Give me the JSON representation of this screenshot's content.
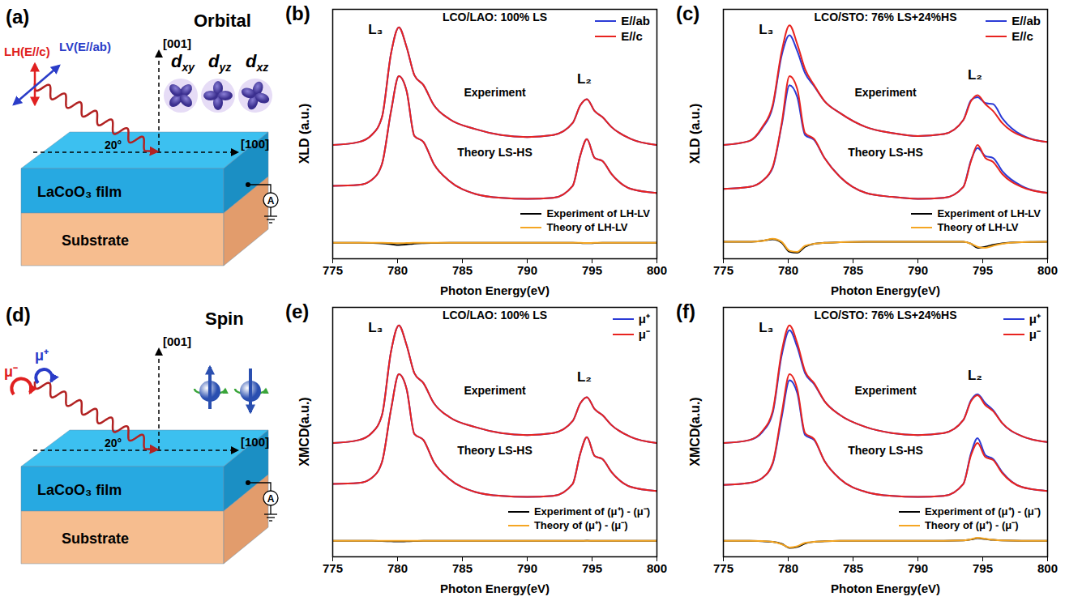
{
  "chart_data": [
    {
      "type": "line",
      "panel": "(b)",
      "title": "LCO/LAO: 100% LS",
      "xlabel": "Photon Energy(eV)",
      "ylabel": "XLD (a.u.)",
      "xlim": [
        775,
        800
      ],
      "xticks": [
        775,
        780,
        785,
        790,
        795,
        800
      ],
      "ylim": [
        -2,
        10.5
      ],
      "tick_labels": "x",
      "legend": "top-right",
      "x": [
        775,
        777,
        778,
        778.8,
        779.5,
        780.1,
        780.7,
        781.3,
        782,
        782.8,
        784,
        786,
        788,
        790,
        792,
        793.5,
        794.1,
        794.6,
        795.2,
        795.8,
        796.5,
        798,
        800
      ],
      "series": [
        {
          "name": "E//ab",
          "color": "#2b3bd6",
          "values": [
            3.7,
            3.85,
            4.2,
            5.1,
            8.3,
            9.6,
            8.6,
            7.2,
            6.7,
            5.7,
            5.0,
            4.5,
            4.2,
            4.1,
            4.2,
            4.8,
            5.7,
            6.0,
            5.4,
            5.1,
            4.6,
            4.0,
            3.7
          ]
        },
        {
          "name": "E//c",
          "color": "#e8231f",
          "values": [
            3.7,
            3.85,
            4.2,
            5.1,
            8.3,
            9.6,
            8.6,
            7.2,
            6.7,
            5.7,
            5.0,
            4.5,
            4.2,
            4.1,
            4.2,
            4.8,
            5.7,
            6.0,
            5.4,
            5.1,
            4.6,
            4.0,
            3.7
          ]
        },
        {
          "name": "E//ab",
          "color": "#2b3bd6",
          "values": [
            1.65,
            1.7,
            1.95,
            2.75,
            5.4,
            7.15,
            6.4,
            4.15,
            3.85,
            2.75,
            1.9,
            1.25,
            1.05,
            1.0,
            1.05,
            1.65,
            3.2,
            4.0,
            3.05,
            2.9,
            2.25,
            1.5,
            1.3
          ]
        },
        {
          "name": "E//c",
          "color": "#e8231f",
          "values": [
            1.65,
            1.7,
            1.95,
            2.75,
            5.4,
            7.15,
            6.4,
            4.15,
            3.85,
            2.75,
            1.9,
            1.25,
            1.05,
            1.0,
            1.05,
            1.65,
            3.2,
            4.0,
            3.05,
            2.9,
            2.25,
            1.5,
            1.3
          ]
        },
        {
          "name": "Experiment of LH-LV",
          "color": "#000000",
          "values": [
            -1.2,
            -1.2,
            -1.21,
            -1.23,
            -1.27,
            -1.31,
            -1.28,
            -1.24,
            -1.22,
            -1.21,
            -1.2,
            -1.2,
            -1.2,
            -1.2,
            -1.2,
            -1.2,
            -1.21,
            -1.22,
            -1.21,
            -1.2,
            -1.2,
            -1.2,
            -1.2
          ]
        },
        {
          "name": "Theory of LH-LV",
          "color": "#f5a623",
          "values": [
            -1.2,
            -1.2,
            -1.2,
            -1.2,
            -1.21,
            -1.22,
            -1.21,
            -1.2,
            -1.2,
            -1.2,
            -1.2,
            -1.2,
            -1.2,
            -1.2,
            -1.2,
            -1.2,
            -1.2,
            -1.21,
            -1.2,
            -1.2,
            -1.2,
            -1.2,
            -1.2
          ]
        }
      ],
      "annotations": [
        {
          "text": "L₃",
          "x": 778.3,
          "y": 9.5
        },
        {
          "text": "L₂",
          "x": 794.4,
          "y": 7.0
        },
        {
          "text": "Experiment",
          "x": 787.5,
          "y": 6.3
        },
        {
          "text": "Theory LS-HS",
          "x": 787.5,
          "y": 3.3
        }
      ]
    },
    {
      "type": "line",
      "panel": "(c)",
      "title": "LCO/STO: 76% LS+24%HS",
      "xlabel": "Photon Energy(eV)",
      "ylabel": "XLD (a.u.)",
      "xlim": [
        775,
        800
      ],
      "xticks": [
        775,
        780,
        785,
        790,
        795,
        800
      ],
      "ylim": [
        -2,
        10.5
      ],
      "tick_labels": "x",
      "legend": "top-right",
      "x": [
        775,
        777,
        778,
        778.8,
        779.5,
        780.1,
        780.7,
        781.3,
        782,
        782.8,
        784,
        786,
        788,
        790,
        792,
        793.5,
        794.1,
        794.6,
        795.2,
        795.8,
        796.5,
        798,
        800
      ],
      "series": [
        {
          "name": "E//ab",
          "color": "#2b3bd6",
          "values": [
            3.7,
            3.9,
            4.55,
            5.6,
            8.2,
            9.2,
            8.4,
            7.3,
            6.65,
            5.9,
            5.3,
            4.6,
            4.3,
            4.15,
            4.25,
            4.95,
            5.95,
            6.1,
            5.8,
            5.75,
            5.05,
            4.2,
            3.85
          ]
        },
        {
          "name": "E//c",
          "color": "#e8231f",
          "values": [
            3.7,
            3.9,
            4.6,
            5.7,
            8.4,
            9.7,
            8.75,
            7.5,
            6.7,
            5.9,
            5.3,
            4.6,
            4.3,
            4.15,
            4.25,
            4.95,
            5.9,
            6.2,
            5.75,
            5.4,
            4.8,
            4.15,
            3.85
          ]
        },
        {
          "name": "E//ab",
          "color": "#2b3bd6",
          "values": [
            1.5,
            1.6,
            1.9,
            2.55,
            4.7,
            6.7,
            6.1,
            4.2,
            3.95,
            3.05,
            2.1,
            1.3,
            1.1,
            1.0,
            1.05,
            1.6,
            2.95,
            3.55,
            3.15,
            3.05,
            2.4,
            1.65,
            1.3
          ]
        },
        {
          "name": "E//c",
          "color": "#e8231f",
          "values": [
            1.5,
            1.6,
            1.9,
            2.6,
            4.8,
            7.15,
            6.5,
            4.3,
            4.0,
            3.05,
            2.1,
            1.3,
            1.1,
            1.0,
            1.05,
            1.6,
            2.9,
            3.7,
            3.05,
            2.85,
            2.25,
            1.6,
            1.3
          ]
        },
        {
          "name": "Experiment of LH-LV",
          "color": "#000000",
          "values": [
            -1.15,
            -1.15,
            -1.1,
            -1.03,
            -1.2,
            -1.65,
            -1.7,
            -1.4,
            -1.25,
            -1.2,
            -1.17,
            -1.15,
            -1.15,
            -1.15,
            -1.15,
            -1.15,
            -1.25,
            -1.45,
            -1.4,
            -1.3,
            -1.23,
            -1.17,
            -1.15
          ]
        },
        {
          "name": "Theory of LH-LV",
          "color": "#f5a623",
          "values": [
            -1.15,
            -1.15,
            -1.11,
            -1.0,
            -1.15,
            -1.6,
            -1.65,
            -1.35,
            -1.25,
            -1.2,
            -1.17,
            -1.15,
            -1.15,
            -1.15,
            -1.15,
            -1.15,
            -1.25,
            -1.4,
            -1.45,
            -1.35,
            -1.25,
            -1.17,
            -1.15
          ]
        }
      ],
      "annotations": [
        {
          "text": "L₃",
          "x": 778.3,
          "y": 9.5
        },
        {
          "text": "L₂",
          "x": 794.4,
          "y": 7.2
        },
        {
          "text": "Experiment",
          "x": 787.5,
          "y": 6.3
        },
        {
          "text": "Theory LS-HS",
          "x": 787.5,
          "y": 3.3
        }
      ]
    },
    {
      "type": "line",
      "panel": "(e)",
      "title": "LCO/LAO: 100% LS",
      "xlabel": "Photon Energy(eV)",
      "ylabel": "XMCD(a.u.)",
      "xlim": [
        775,
        800
      ],
      "xticks": [
        775,
        780,
        785,
        790,
        795,
        800
      ],
      "ylim": [
        -2,
        10.5
      ],
      "tick_labels": "x",
      "legend": "top-right",
      "x": [
        775,
        777,
        778,
        778.8,
        779.5,
        780.1,
        780.7,
        781.3,
        782,
        782.8,
        784,
        786,
        788,
        790,
        792,
        793.5,
        794.1,
        794.6,
        795.2,
        795.8,
        796.5,
        798,
        800
      ],
      "series": [
        {
          "name": "μ⁺",
          "color": "#2b3bd6",
          "values": [
            3.7,
            3.85,
            4.2,
            5.1,
            8.3,
            9.6,
            8.6,
            7.2,
            6.7,
            5.7,
            5.0,
            4.5,
            4.2,
            4.1,
            4.2,
            4.8,
            5.7,
            6.0,
            5.4,
            5.1,
            4.6,
            4.0,
            3.7
          ]
        },
        {
          "name": "μ⁻",
          "color": "#e8231f",
          "values": [
            3.7,
            3.85,
            4.2,
            5.1,
            8.3,
            9.6,
            8.6,
            7.2,
            6.7,
            5.7,
            5.0,
            4.5,
            4.2,
            4.1,
            4.2,
            4.8,
            5.7,
            6.0,
            5.4,
            5.1,
            4.6,
            4.0,
            3.7
          ]
        },
        {
          "name": "μ⁺",
          "color": "#2b3bd6",
          "values": [
            1.65,
            1.7,
            1.95,
            2.75,
            5.4,
            7.15,
            6.4,
            4.15,
            3.85,
            2.75,
            1.9,
            1.25,
            1.05,
            1.0,
            1.05,
            1.65,
            3.2,
            4.0,
            3.05,
            2.9,
            2.25,
            1.5,
            1.3
          ]
        },
        {
          "name": "μ⁻",
          "color": "#e8231f",
          "values": [
            1.65,
            1.7,
            1.95,
            2.75,
            5.4,
            7.15,
            6.4,
            4.15,
            3.85,
            2.75,
            1.9,
            1.25,
            1.05,
            1.0,
            1.05,
            1.65,
            3.2,
            4.0,
            3.05,
            2.9,
            2.25,
            1.5,
            1.3
          ]
        },
        {
          "name": "Experiment of (μ⁺) - (μ⁻)",
          "color": "#000000",
          "values": [
            -1.2,
            -1.2,
            -1.2,
            -1.21,
            -1.22,
            -1.23,
            -1.22,
            -1.21,
            -1.2,
            -1.2,
            -1.2,
            -1.2,
            -1.2,
            -1.2,
            -1.2,
            -1.2,
            -1.2,
            -1.19,
            -1.2,
            -1.2,
            -1.2,
            -1.2,
            -1.2
          ]
        },
        {
          "name": "Theory of (μ⁺) - (μ⁻)",
          "color": "#f5a623",
          "values": [
            -1.2,
            -1.2,
            -1.2,
            -1.2,
            -1.2,
            -1.2,
            -1.2,
            -1.2,
            -1.2,
            -1.2,
            -1.2,
            -1.2,
            -1.2,
            -1.2,
            -1.2,
            -1.2,
            -1.2,
            -1.2,
            -1.2,
            -1.2,
            -1.2,
            -1.2,
            -1.2
          ]
        }
      ],
      "annotations": [
        {
          "text": "L₃",
          "x": 778.3,
          "y": 9.5
        },
        {
          "text": "L₂",
          "x": 794.4,
          "y": 7.0
        },
        {
          "text": "Experiment",
          "x": 787.5,
          "y": 6.3
        },
        {
          "text": "Theory LS-HS",
          "x": 787.5,
          "y": 3.3
        }
      ]
    },
    {
      "type": "line",
      "panel": "(f)",
      "title": "LCO/STO: 76% LS+24%HS",
      "xlabel": "Photon Energy(eV)",
      "ylabel": "XMCD(a.u.)",
      "xlim": [
        775,
        800
      ],
      "xticks": [
        775,
        780,
        785,
        790,
        795,
        800
      ],
      "ylim": [
        -2,
        10.5
      ],
      "tick_labels": "x",
      "legend": "top-right",
      "x": [
        775,
        777,
        778,
        778.8,
        779.5,
        780.1,
        780.7,
        781.3,
        782,
        782.8,
        784,
        786,
        788,
        790,
        792,
        793.5,
        794.1,
        794.6,
        795.2,
        795.8,
        796.5,
        798,
        800
      ],
      "series": [
        {
          "name": "μ⁺",
          "color": "#2b3bd6",
          "values": [
            3.7,
            3.85,
            4.25,
            5.2,
            8.1,
            9.35,
            8.5,
            7.2,
            6.65,
            5.8,
            5.1,
            4.5,
            4.2,
            4.1,
            4.2,
            4.85,
            5.85,
            6.15,
            5.7,
            5.35,
            4.7,
            4.05,
            3.75
          ]
        },
        {
          "name": "μ⁻",
          "color": "#e8231f",
          "values": [
            3.7,
            3.85,
            4.3,
            5.3,
            8.3,
            9.6,
            8.7,
            7.3,
            6.7,
            5.8,
            5.1,
            4.5,
            4.2,
            4.1,
            4.2,
            4.85,
            5.8,
            6.1,
            5.6,
            5.3,
            4.7,
            4.05,
            3.75
          ]
        },
        {
          "name": "μ⁺",
          "color": "#2b3bd6",
          "values": [
            1.6,
            1.7,
            1.95,
            2.65,
            5.0,
            6.85,
            6.2,
            4.1,
            3.85,
            2.8,
            1.9,
            1.25,
            1.05,
            1.0,
            1.05,
            1.65,
            3.2,
            3.95,
            3.1,
            2.9,
            2.25,
            1.5,
            1.3
          ]
        },
        {
          "name": "μ⁻",
          "color": "#e8231f",
          "values": [
            1.6,
            1.7,
            1.95,
            2.7,
            5.2,
            7.15,
            6.4,
            4.2,
            3.9,
            2.8,
            1.9,
            1.25,
            1.05,
            1.0,
            1.05,
            1.65,
            3.1,
            3.7,
            3.0,
            2.85,
            2.2,
            1.5,
            1.3
          ]
        },
        {
          "name": "Experiment of (μ⁺) - (μ⁻)",
          "color": "#000000",
          "values": [
            -1.2,
            -1.2,
            -1.22,
            -1.25,
            -1.35,
            -1.55,
            -1.5,
            -1.33,
            -1.25,
            -1.22,
            -1.2,
            -1.2,
            -1.2,
            -1.2,
            -1.2,
            -1.18,
            -1.13,
            -1.07,
            -1.11,
            -1.15,
            -1.18,
            -1.2,
            -1.2
          ]
        },
        {
          "name": "Theory of (μ⁺) - (μ⁻)",
          "color": "#f5a623",
          "values": [
            -1.2,
            -1.2,
            -1.21,
            -1.25,
            -1.37,
            -1.53,
            -1.47,
            -1.3,
            -1.25,
            -1.22,
            -1.2,
            -1.2,
            -1.2,
            -1.2,
            -1.2,
            -1.18,
            -1.12,
            -1.05,
            -1.1,
            -1.15,
            -1.18,
            -1.2,
            -1.2
          ]
        }
      ],
      "annotations": [
        {
          "text": "L₃",
          "x": 778.3,
          "y": 9.5
        },
        {
          "text": "L₂",
          "x": 794.4,
          "y": 7.1
        },
        {
          "text": "Experiment",
          "x": 787.5,
          "y": 6.3
        },
        {
          "text": "Theory LS-HS",
          "x": 787.5,
          "y": 3.3
        }
      ]
    }
  ],
  "diagrams": [
    {
      "panel": "(a)",
      "title": "Orbital",
      "axes": [
        "[001]",
        "[100]"
      ],
      "angle": "20°",
      "beams": [
        {
          "text": "LH(E//c)",
          "color": "#e02020"
        },
        {
          "text": "LV(E//ab)",
          "color": "#2a3cc8"
        }
      ],
      "orbitals": [
        {
          "base": "d",
          "sub": "xy"
        },
        {
          "base": "d",
          "sub": "yz"
        },
        {
          "base": "d",
          "sub": "xz"
        }
      ],
      "layers": [
        "LaCoO₃ film",
        "Substrate"
      ],
      "meter": "A"
    },
    {
      "panel": "(d)",
      "title": "Spin",
      "axes": [
        "[001]",
        "[100]"
      ],
      "angle": "20°",
      "beams": [
        {
          "text": "μ⁻",
          "color": "#e02020"
        },
        {
          "text": "μ⁺",
          "color": "#2a3cc8"
        }
      ],
      "layers": [
        "LaCoO₃ film",
        "Substrate"
      ],
      "meter": "A"
    }
  ]
}
